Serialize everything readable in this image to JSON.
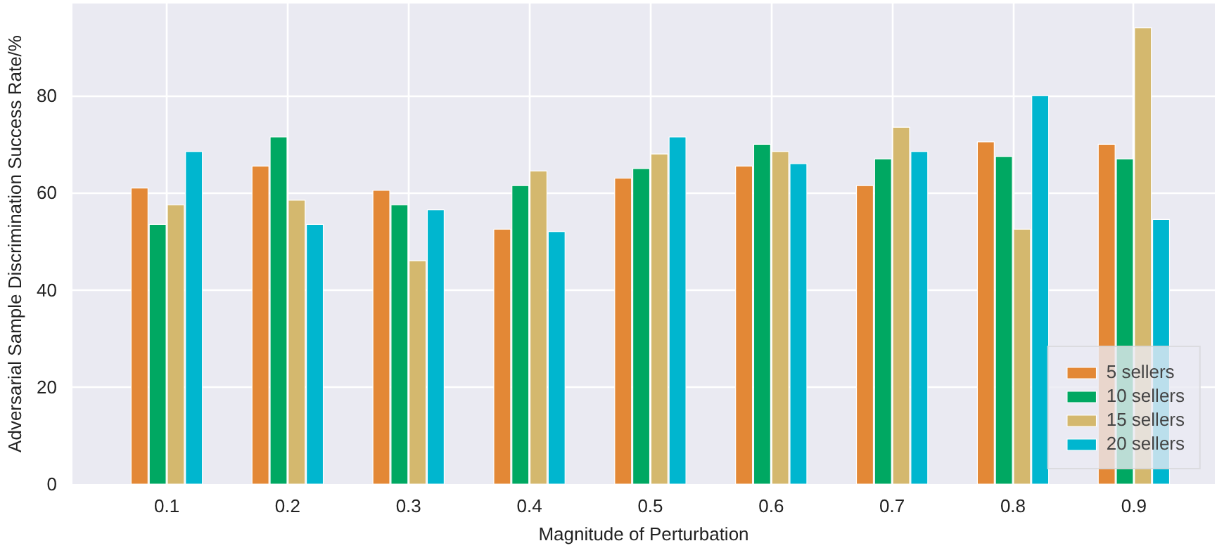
{
  "chart_data": {
    "type": "bar",
    "xlabel": "Magnitude of Perturbation",
    "ylabel": "Adversarial Sample Discrimination Success Rate/%",
    "categories": [
      "0.1",
      "0.2",
      "0.3",
      "0.4",
      "0.5",
      "0.6",
      "0.7",
      "0.8",
      "0.9"
    ],
    "series": [
      {
        "name": "5 sellers",
        "color": "#e38836",
        "values": [
          61,
          65.5,
          60.5,
          52.5,
          63,
          65.5,
          61.5,
          70.5,
          70
        ]
      },
      {
        "name": "10 sellers",
        "color": "#00a862",
        "values": [
          53.5,
          71.5,
          57.5,
          61.5,
          65,
          70,
          67,
          67.5,
          67
        ]
      },
      {
        "name": "15 sellers",
        "color": "#d4b86e",
        "values": [
          57.5,
          58.5,
          46,
          64.5,
          68,
          68.5,
          73.5,
          52.5,
          94
        ]
      },
      {
        "name": "20 sellers",
        "color": "#00b6cf",
        "values": [
          68.5,
          53.5,
          56.5,
          52,
          71.5,
          66,
          68.5,
          80,
          54.5
        ]
      }
    ],
    "ylim": [
      0,
      99
    ],
    "yticks": [
      0,
      20,
      40,
      60,
      80
    ],
    "grid": true,
    "legend": "bottom right"
  }
}
